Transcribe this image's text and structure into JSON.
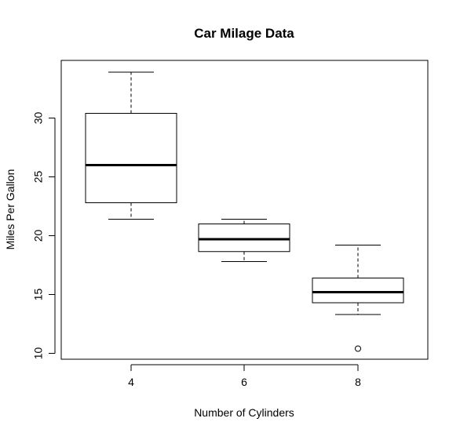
{
  "chart_data": {
    "type": "boxplot",
    "title": "Car Milage Data",
    "xlabel": "Number of Cylinders",
    "ylabel": "Miles Per Gallon",
    "categories": [
      "4",
      "6",
      "8"
    ],
    "boxes": [
      {
        "category": "4",
        "whisker_low": 21.4,
        "q1": 22.8,
        "median": 26.0,
        "q3": 30.4,
        "whisker_high": 33.9,
        "outliers": []
      },
      {
        "category": "6",
        "whisker_low": 17.8,
        "q1": 18.65,
        "median": 19.7,
        "q3": 21.0,
        "whisker_high": 21.4,
        "outliers": []
      },
      {
        "category": "8",
        "whisker_low": 13.3,
        "q1": 14.3,
        "median": 15.2,
        "q3": 16.4,
        "whisker_high": 19.2,
        "outliers": [
          10.4
        ]
      }
    ],
    "yticks": [
      10,
      15,
      20,
      25,
      30
    ],
    "ytick_labels": [
      "10",
      "15",
      "20",
      "25",
      "30"
    ],
    "xtick_labels": [
      "4",
      "6",
      "8"
    ],
    "ylim": [
      9.5,
      34.9
    ],
    "grid": false
  }
}
